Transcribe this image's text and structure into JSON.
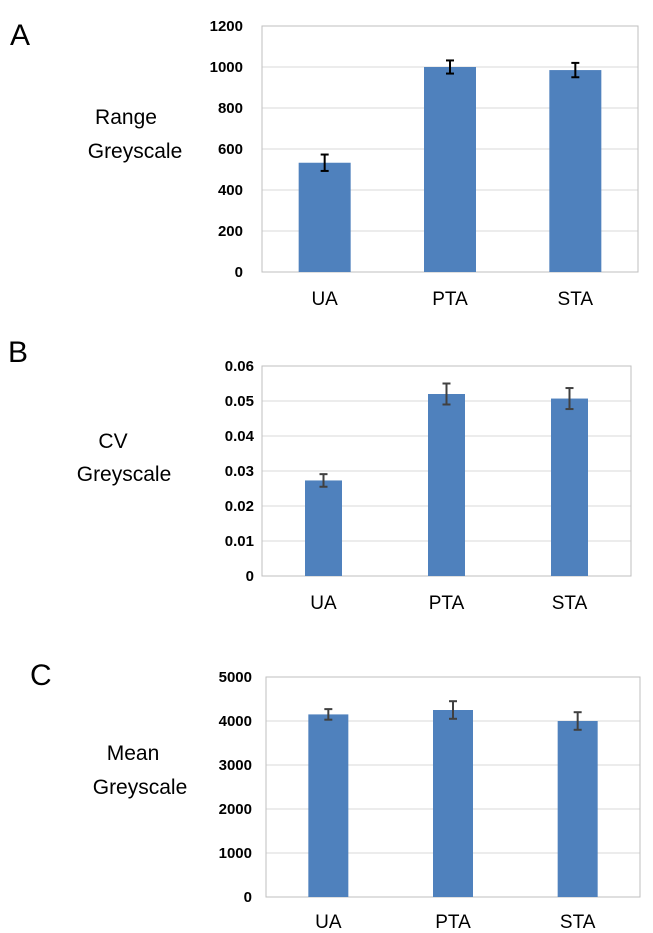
{
  "chart_data": [
    {
      "type": "bar",
      "panel": "A",
      "ylabel_lines": [
        "Range",
        "Greyscale"
      ],
      "categories": [
        "UA",
        "PTA",
        "STA"
      ],
      "values": [
        533,
        1000,
        985
      ],
      "errors": [
        40,
        32,
        35
      ],
      "ylim": [
        0,
        1200
      ],
      "yticks": [
        "0",
        "200",
        "400",
        "600",
        "800",
        "1000",
        "1200"
      ],
      "grid": true,
      "bar_color": "#4f81bd",
      "error_color": "#000000"
    },
    {
      "type": "bar",
      "panel": "B",
      "ylabel_lines": [
        "CV",
        "Greyscale"
      ],
      "categories": [
        "UA",
        "PTA",
        "STA"
      ],
      "values": [
        0.0273,
        0.052,
        0.0507
      ],
      "errors": [
        0.0018,
        0.003,
        0.003
      ],
      "ylim": [
        0,
        0.06
      ],
      "yticks": [
        "0",
        "0.01",
        "0.02",
        "0.03",
        "0.04",
        "0.05",
        "0.06"
      ],
      "grid": true,
      "bar_color": "#4f81bd",
      "error_color": "#404040"
    },
    {
      "type": "bar",
      "panel": "C",
      "ylabel_lines": [
        "Mean",
        "Greyscale"
      ],
      "categories": [
        "UA",
        "PTA",
        "STA"
      ],
      "values": [
        4150,
        4250,
        4000
      ],
      "errors": [
        120,
        200,
        200
      ],
      "ylim": [
        0,
        5000
      ],
      "yticks": [
        "0",
        "1000",
        "2000",
        "3000",
        "4000",
        "5000"
      ],
      "grid": true,
      "bar_color": "#4f81bd",
      "error_color": "#404040"
    }
  ]
}
